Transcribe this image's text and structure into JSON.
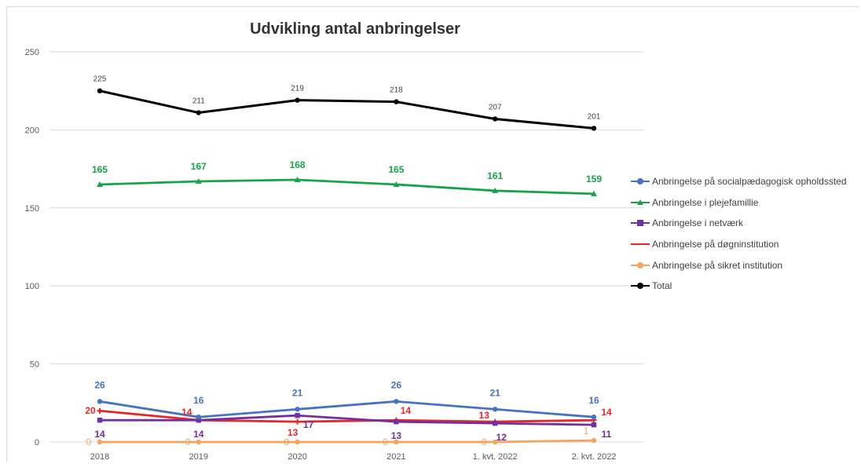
{
  "chart_data": {
    "type": "line",
    "title": "Udvikling antal anbringelser",
    "categories": [
      "2018",
      "2019",
      "2020",
      "2021",
      "1. kvt. 2022",
      "2. kvt. 2022"
    ],
    "ylim": [
      0,
      250
    ],
    "yticks": [
      0,
      50,
      100,
      150,
      200,
      250
    ],
    "grid": true,
    "legend_position": "right",
    "series": [
      {
        "name": "Anbringelse på socialpædagogisk opholdssted",
        "color": "#4472c4",
        "marker": "circle",
        "values": [
          26,
          16,
          21,
          26,
          21,
          16
        ],
        "labels": [
          "26",
          "16",
          "21",
          "26",
          "21",
          "16"
        ]
      },
      {
        "name": "Anbringelse i plejefamillie",
        "color": "#16a34a",
        "marker": "triangle",
        "values": [
          165,
          167,
          168,
          165,
          161,
          159
        ],
        "labels": [
          "165",
          "167",
          "168",
          "165",
          "161",
          "159"
        ]
      },
      {
        "name": "Anbringelse i netværk",
        "color": "#7030a0",
        "marker": "square",
        "values": [
          14,
          14,
          17,
          13,
          12,
          11
        ],
        "labels": [
          "14",
          "14",
          "17",
          "13",
          "12",
          "11"
        ]
      },
      {
        "name": "Anbringelse på døgninstitution",
        "color": "#e8262a",
        "marker": "plus",
        "values": [
          20,
          14,
          13,
          14,
          13,
          14
        ],
        "labels": [
          "20",
          "14",
          "13",
          "14",
          "13",
          "14"
        ]
      },
      {
        "name": "Anbringelse på sikret institution",
        "color": "#f4a460",
        "marker": "circle",
        "values": [
          0,
          0,
          0,
          0,
          0,
          1
        ],
        "labels": [
          "0",
          "0",
          "0",
          "0",
          "0",
          "1"
        ]
      },
      {
        "name": "Total",
        "color": "#000000",
        "marker": "circle",
        "values": [
          225,
          211,
          219,
          218,
          207,
          201
        ],
        "labels": [
          "225",
          "211",
          "219",
          "218",
          "207",
          "201"
        ]
      }
    ]
  }
}
